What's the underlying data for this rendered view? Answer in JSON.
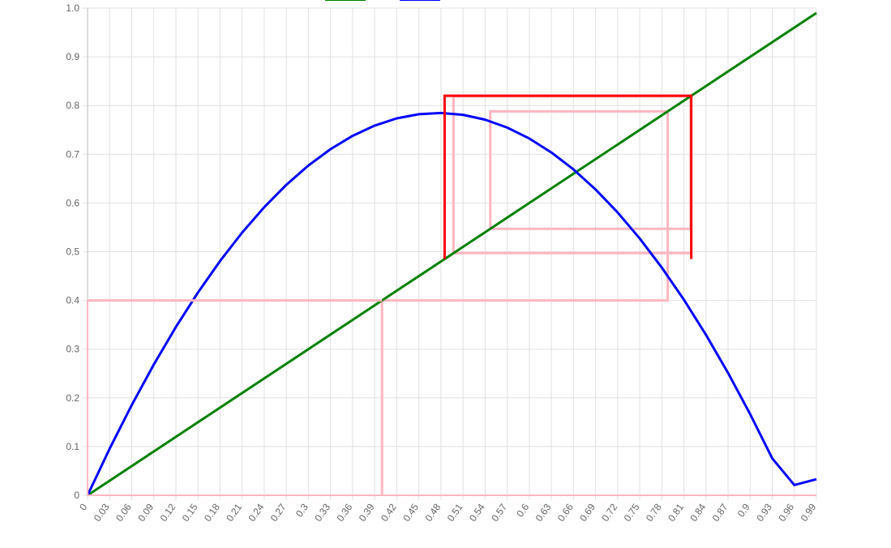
{
  "chart_data": {
    "type": "line",
    "title": "",
    "xlabel": "",
    "ylabel": "",
    "xlim": [
      0,
      0.99
    ],
    "ylim": [
      0,
      1.0
    ],
    "grid": true,
    "legend": {
      "placement": "top-center",
      "entries": [
        {
          "series": "identity",
          "color": "#008000"
        },
        {
          "series": "map",
          "color": "#0000ff"
        }
      ]
    },
    "x_ticks": [
      "0",
      "0.03",
      "0.06",
      "0.09",
      "0.12",
      "0.15",
      "0.18",
      "0.21",
      "0.24",
      "0.27",
      "0.3",
      "0.33",
      "0.36",
      "0.39",
      "0.42",
      "0.45",
      "0.48",
      "0.51",
      "0.54",
      "0.57",
      "0.6",
      "0.63",
      "0.66",
      "0.69",
      "0.72",
      "0.75",
      "0.78",
      "0.81",
      "0.84",
      "0.87",
      "0.9",
      "0.93",
      "0.96",
      "0.99"
    ],
    "y_ticks": [
      "0",
      "0.1",
      "0.2",
      "0.3",
      "0.4",
      "0.5",
      "0.6",
      "0.7",
      "0.8",
      "0.9",
      "1.0"
    ],
    "series": [
      {
        "id": "identity",
        "color": "#008000",
        "x": [
          0,
          0.99
        ],
        "y": [
          0,
          0.99
        ]
      },
      {
        "id": "map",
        "color": "#0000ff",
        "x": [
          0,
          0.03,
          0.06,
          0.09,
          0.12,
          0.15,
          0.18,
          0.21,
          0.24,
          0.27,
          0.3,
          0.33,
          0.36,
          0.39,
          0.42,
          0.45,
          0.48,
          0.51,
          0.54,
          0.57,
          0.6,
          0.63,
          0.66,
          0.69,
          0.72,
          0.75,
          0.78,
          0.81,
          0.84,
          0.87,
          0.9,
          0.93,
          0.96,
          0.99
        ],
        "y": [
          0,
          0.0957,
          0.1852,
          0.2685,
          0.3455,
          0.4163,
          0.4809,
          0.5393,
          0.5914,
          0.6373,
          0.677,
          0.7105,
          0.7378,
          0.7589,
          0.7737,
          0.7823,
          0.7848,
          0.781,
          0.771,
          0.7548,
          0.7324,
          0.7037,
          0.6689,
          0.6278,
          0.5806,
          0.5271,
          0.4674,
          0.4015,
          0.3294,
          0.2511,
          0.1666,
          0.0758,
          0.0211,
          0.0329
        ]
      },
      {
        "id": "cobweb-history",
        "color": "#ffb6c1",
        "x": [
          0.4,
          0.4,
          0.788,
          0.788,
          0.547,
          0.547,
          0.819,
          0.819,
          0.497,
          0.497,
          0.82,
          0.82,
          0.485
        ],
        "y": [
          0,
          0.4,
          0.4,
          0.788,
          0.788,
          0.547,
          0.547,
          0.819,
          0.819,
          0.497,
          0.497,
          0.82,
          0.82
        ]
      },
      {
        "id": "cobweb-current",
        "color": "#ff0000",
        "x": [
          0.485,
          0.485,
          0.82,
          0.82
        ],
        "y": [
          0.485,
          0.82,
          0.82,
          0.485
        ]
      }
    ]
  }
}
